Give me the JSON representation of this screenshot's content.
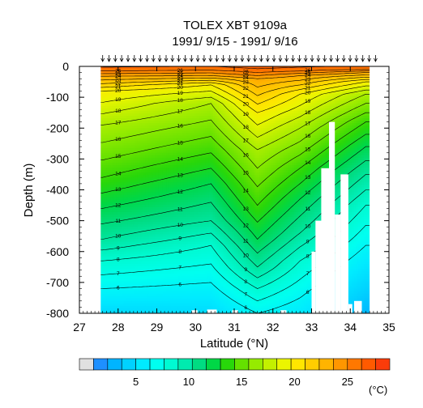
{
  "chart_data": {
    "type": "heatmap",
    "title": "TOLEX XBT 9109a",
    "subtitle": "1991/ 9/15 - 1991/ 9/16",
    "xlabel": "Latitude (°N)",
    "ylabel": "Depth (m)",
    "xlim": [
      27,
      35
    ],
    "ylim": [
      -800,
      0
    ],
    "x_ticks": [
      "27",
      "28",
      "29",
      "30",
      "31",
      "32",
      "33",
      "34",
      "35"
    ],
    "y_ticks": [
      "0",
      "-100",
      "-200",
      "-300",
      "-400",
      "-500",
      "-600",
      "-700",
      "-800"
    ],
    "colorbar": {
      "label": "(°C)",
      "range": [
        1,
        29
      ],
      "tick_labels": [
        "5",
        "10",
        "15",
        "20",
        "25"
      ],
      "tick_values": [
        5,
        10,
        15,
        20,
        25
      ]
    },
    "contour_labels": [
      "27",
      "26",
      "25",
      "24",
      "23",
      "22",
      "21",
      "20",
      "19",
      "18",
      "17",
      "16",
      "15",
      "14",
      "13",
      "12",
      "11",
      "10",
      "9",
      "8",
      "7",
      "6"
    ],
    "temperature_profiles": [
      {
        "lat": 27.6,
        "isotherm_depths": [
          [
            26,
            -15
          ],
          [
            24,
            -32
          ],
          [
            20,
            -80
          ],
          [
            17,
            -190
          ],
          [
            14,
            -360
          ],
          [
            12,
            -460
          ],
          [
            10,
            -560
          ],
          [
            8,
            -630
          ],
          [
            6,
            -720
          ]
        ]
      },
      {
        "lat": 30.4,
        "isotherm_depths": [
          [
            26,
            -12
          ],
          [
            24,
            -30
          ],
          [
            20,
            -60
          ],
          [
            17,
            -120
          ],
          [
            14,
            -280
          ],
          [
            12,
            -380
          ],
          [
            10,
            -500
          ],
          [
            8,
            -580
          ],
          [
            6,
            -700
          ]
        ]
      },
      {
        "lat": 31.6,
        "isotherm_depths": [
          [
            26,
            -20
          ],
          [
            24,
            -40
          ],
          [
            20,
            -150
          ],
          [
            17,
            -270
          ],
          [
            14,
            -450
          ],
          [
            12,
            -560
          ],
          [
            10,
            -650
          ],
          [
            8,
            -720
          ],
          [
            6,
            -800
          ]
        ]
      },
      {
        "lat": 32.7,
        "isotherm_depths": [
          [
            26,
            -15
          ],
          [
            24,
            -30
          ],
          [
            20,
            -90
          ],
          [
            17,
            -200
          ],
          [
            14,
            -330
          ],
          [
            12,
            -430
          ],
          [
            10,
            -540
          ],
          [
            8,
            -630
          ],
          [
            6,
            -750
          ]
        ]
      },
      {
        "lat": 34.4,
        "isotherm_depths": [
          [
            26,
            -10
          ],
          [
            24,
            -20
          ],
          [
            20,
            -50
          ],
          [
            17,
            -90
          ],
          [
            14,
            -180
          ],
          [
            12,
            -260
          ],
          [
            10,
            -350
          ],
          [
            8,
            -450
          ],
          [
            6,
            -580
          ]
        ]
      }
    ]
  }
}
